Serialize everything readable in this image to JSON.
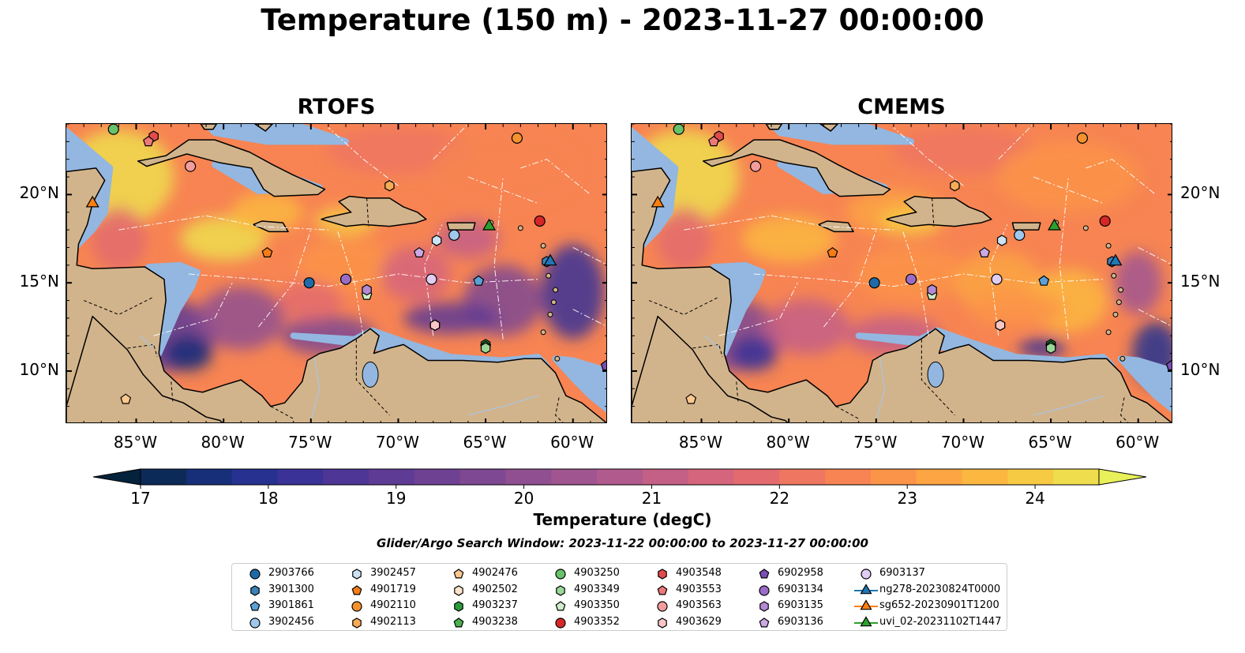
{
  "figure": {
    "suptitle": "Temperature (150 m) - 2023-11-27 00:00:00",
    "search_window": "Glider/Argo Search Window: 2023-11-22 00:00:00 to 2023-11-27 00:00:00"
  },
  "chart_data": [
    {
      "type": "heatmap",
      "title": "RTOFS",
      "variable": "Temperature",
      "depth": "150 m",
      "x_ticks": [
        "85°W",
        "80°W",
        "75°W",
        "70°W",
        "65°W",
        "60°W"
      ],
      "x_tick_values": [
        -85,
        -80,
        -75,
        -70,
        -65,
        -60
      ],
      "y_ticks": [
        "10°N",
        "15°N",
        "20°N"
      ],
      "y_tick_values": [
        10,
        15,
        20
      ],
      "xlim": [
        -89,
        -58
      ],
      "ylim": [
        7,
        24
      ],
      "y_tick_side": "left",
      "colorbar": {
        "label": "Temperature (degC)",
        "range": [
          17,
          24.5
        ],
        "ticks": [
          17,
          18,
          19,
          20,
          21,
          22,
          23,
          24
        ],
        "extend": "both",
        "colormap": "thermal"
      },
      "contours_labeled": [
        "-100",
        "-1000"
      ]
    },
    {
      "type": "heatmap",
      "title": "CMEMS",
      "variable": "Temperature",
      "depth": "150 m",
      "x_ticks": [
        "85°W",
        "80°W",
        "75°W",
        "70°W",
        "65°W",
        "60°W"
      ],
      "x_tick_values": [
        -85,
        -80,
        -75,
        -70,
        -65,
        -60
      ],
      "y_ticks": [
        "10°N",
        "15°N",
        "20°N"
      ],
      "y_tick_values": [
        10,
        15,
        20
      ],
      "xlim": [
        -89,
        -58
      ],
      "ylim": [
        7,
        24
      ],
      "y_tick_side": "right",
      "colorbar": {
        "label": "Temperature (degC)",
        "range": [
          17,
          24.5
        ],
        "ticks": [
          17,
          18,
          19,
          20,
          21,
          22,
          23,
          24
        ],
        "extend": "both",
        "colormap": "thermal"
      },
      "contours_labeled": [
        "-100",
        "-1000"
      ]
    }
  ],
  "colorbar": {
    "label": "Temperature (degC)",
    "tick_labels": [
      "17",
      "18",
      "19",
      "20",
      "21",
      "22",
      "23",
      "24"
    ],
    "colors": [
      "#04223b",
      "#0c2a58",
      "#172f78",
      "#263190",
      "#3a3296",
      "#4d3696",
      "#5e3b95",
      "#6f4193",
      "#7e4892",
      "#8f4f91",
      "#a05590",
      "#b15a8d",
      "#c45f86",
      "#d5657c",
      "#e36b6f",
      "#ef7660",
      "#f78452",
      "#fb9449",
      "#fca542",
      "#fbb73f",
      "#f7ca44",
      "#efdd4d",
      "#e8f05a"
    ]
  },
  "observations": [
    {
      "label": "2903766",
      "lon": -75.1,
      "lat": 15.0,
      "marker": "circle",
      "color": "#1f6ba8"
    },
    {
      "label": "3901300",
      "lon": -61.5,
      "lat": 16.2,
      "marker": "hexagon",
      "color": "#3a82b8"
    },
    {
      "label": "3901861",
      "lon": -65.4,
      "lat": 15.1,
      "marker": "pentagon",
      "color": "#5aa1d8"
    },
    {
      "label": "3902456",
      "lon": -66.8,
      "lat": 17.7,
      "marker": "circle",
      "color": "#9ec9ec"
    },
    {
      "label": "3902457",
      "lon": -67.8,
      "lat": 17.4,
      "marker": "hexagon",
      "color": "#cbe3f5"
    },
    {
      "label": "4901719",
      "lon": -77.5,
      "lat": 16.7,
      "marker": "pentagon",
      "color": "#f57c16"
    },
    {
      "label": "4902110",
      "lon": -63.2,
      "lat": 23.2,
      "marker": "circle",
      "color": "#f5922e"
    },
    {
      "label": "4902113",
      "lon": -70.5,
      "lat": 20.5,
      "marker": "hexagon",
      "color": "#f8ab57"
    },
    {
      "label": "4902476",
      "lon": -85.6,
      "lat": 8.4,
      "marker": "pentagon",
      "color": "#fbc88e"
    },
    {
      "label": "4902502",
      "lon": -67.9,
      "lat": 12.6,
      "marker": "hexagon",
      "color": "#fde3c8"
    },
    {
      "label": "4903237",
      "lon": -65.0,
      "lat": 11.5,
      "marker": "hexagon",
      "color": "#2a9d3a"
    },
    {
      "label": "4903238",
      "lon": -65.0,
      "lat": 11.4,
      "marker": "pentagon",
      "color": "#4bb14d"
    },
    {
      "label": "4903250",
      "lon": -86.3,
      "lat": 23.7,
      "marker": "circle",
      "color": "#69c26a"
    },
    {
      "label": "4903349",
      "lon": -65.0,
      "lat": 11.3,
      "marker": "hexagon",
      "color": "#9ad89a"
    },
    {
      "label": "4903350",
      "lon": -71.8,
      "lat": 14.3,
      "marker": "pentagon",
      "color": "#cdeec8"
    },
    {
      "label": "4903352",
      "lon": -61.9,
      "lat": 18.5,
      "marker": "circle",
      "color": "#d62728"
    },
    {
      "label": "4903548",
      "lon": -84.0,
      "lat": 23.3,
      "marker": "hexagon",
      "color": "#e24b4b"
    },
    {
      "label": "4903553",
      "lon": -84.3,
      "lat": 23.0,
      "marker": "pentagon",
      "color": "#ee7878"
    },
    {
      "label": "4903563",
      "lon": -81.9,
      "lat": 21.6,
      "marker": "circle",
      "color": "#f29c9c"
    },
    {
      "label": "4903629",
      "lon": -67.9,
      "lat": 12.6,
      "marker": "hexagon",
      "color": "#f9c6c6"
    },
    {
      "label": "6902958",
      "lon": -58.1,
      "lat": 10.3,
      "marker": "pentagon",
      "color": "#7c4fb3"
    },
    {
      "label": "6903134",
      "lon": -73.0,
      "lat": 15.2,
      "marker": "circle",
      "color": "#9a6cc8"
    },
    {
      "label": "6903135",
      "lon": -71.8,
      "lat": 14.6,
      "marker": "hexagon",
      "color": "#b48ad6"
    },
    {
      "label": "6903136",
      "lon": -68.8,
      "lat": 16.7,
      "marker": "pentagon",
      "color": "#cba9e3"
    },
    {
      "label": "6903137",
      "lon": -68.1,
      "lat": 15.2,
      "marker": "circle",
      "color": "#e2cdf2"
    },
    {
      "label": "ng278-20230824T0000",
      "lon": -61.3,
      "lat": 16.2,
      "marker": "triangle",
      "color": "#1f77b4"
    },
    {
      "label": "sg652-20230901T1200",
      "lon": -87.5,
      "lat": 19.5,
      "marker": "triangle",
      "color": "#ff7f0e"
    },
    {
      "label": "uvi_02-20231102T1447",
      "lon": -64.8,
      "lat": 18.2,
      "marker": "triangle",
      "color": "#2ca02c"
    }
  ]
}
